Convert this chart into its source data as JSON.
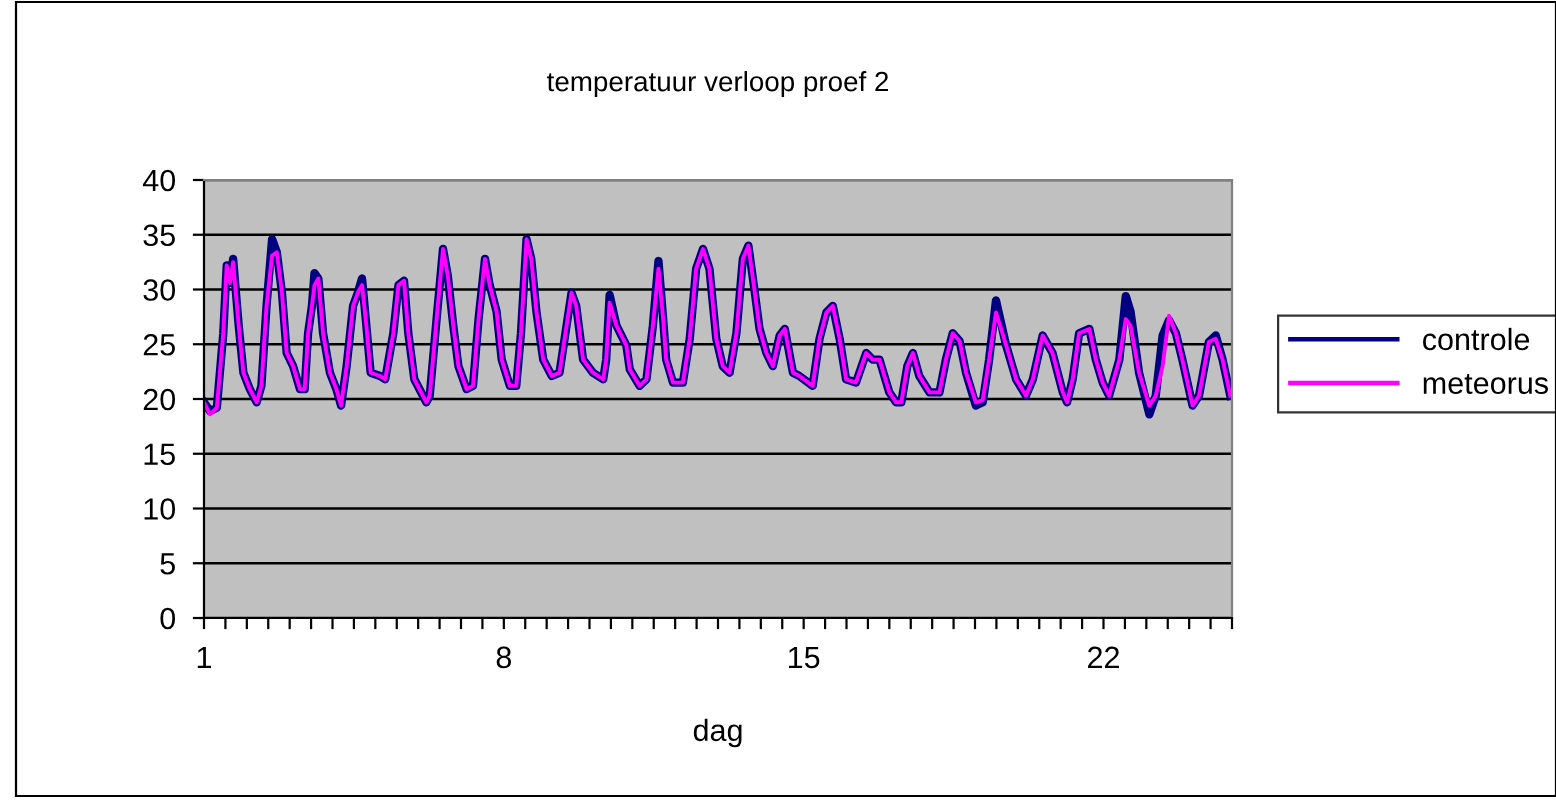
{
  "chart_data": {
    "type": "line",
    "title": "temperatuur verloop proef 2",
    "xlabel": "dag",
    "x": [
      1.0,
      1.14,
      1.3,
      1.45,
      1.53,
      1.61,
      1.68,
      1.81,
      1.92,
      2.07,
      2.23,
      2.34,
      2.46,
      2.59,
      2.7,
      2.82,
      2.93,
      3.08,
      3.24,
      3.35,
      3.43,
      3.52,
      3.58,
      3.67,
      3.78,
      3.94,
      4.09,
      4.2,
      4.33,
      4.48,
      4.59,
      4.69,
      4.79,
      4.89,
      5.11,
      5.23,
      5.42,
      5.54,
      5.67,
      5.77,
      5.91,
      6.19,
      6.27,
      6.43,
      6.58,
      6.69,
      6.82,
      6.94,
      7.13,
      7.28,
      7.41,
      7.56,
      7.67,
      7.83,
      7.95,
      8.14,
      8.29,
      8.4,
      8.53,
      8.64,
      8.76,
      8.92,
      9.12,
      9.3,
      9.43,
      9.58,
      9.69,
      9.85,
      10.08,
      10.32,
      10.39,
      10.47,
      10.63,
      10.86,
      10.94,
      11.17,
      11.33,
      11.48,
      11.61,
      11.72,
      11.79,
      11.95,
      12.18,
      12.34,
      12.49,
      12.65,
      12.8,
      12.96,
      13.11,
      13.27,
      13.43,
      13.58,
      13.71,
      13.86,
      13.97,
      14.13,
      14.28,
      14.44,
      14.56,
      14.75,
      14.9,
      15.21,
      15.37,
      15.53,
      15.68,
      15.84,
      15.99,
      16.22,
      16.46,
      16.61,
      16.77,
      17.0,
      17.16,
      17.28,
      17.42,
      17.55,
      17.7,
      17.94,
      18.17,
      18.32,
      18.48,
      18.64,
      18.79,
      19.02,
      19.18,
      19.33,
      19.49,
      19.72,
      19.96,
      20.19,
      20.35,
      20.58,
      20.81,
      21.05,
      21.15,
      21.28,
      21.43,
      21.67,
      21.82,
      21.98,
      22.13,
      22.37,
      22.52,
      22.63,
      22.83,
      23.07,
      23.22,
      23.38,
      23.53,
      23.69,
      23.84,
      24.08,
      24.23,
      24.46,
      24.62,
      24.78,
      24.96
    ],
    "series": [
      {
        "name": "controle",
        "color": "#000080",
        "values": [
          19.7,
          18.9,
          19.2,
          26,
          32.2,
          30.6,
          32.8,
          26.7,
          22.4,
          20.9,
          19.7,
          21.2,
          28.5,
          34.6,
          33.4,
          29.7,
          24.2,
          23,
          20.9,
          20.9,
          26,
          28.5,
          31.5,
          31,
          26,
          22.4,
          20.9,
          19.4,
          23,
          28.5,
          29.7,
          31,
          26.7,
          22.4,
          22.1,
          21.8,
          26,
          30.4,
          30.8,
          26,
          21.8,
          19.7,
          20.3,
          27.3,
          33.7,
          31.3,
          26.7,
          23,
          20.9,
          21.2,
          27.3,
          32.8,
          30.4,
          28,
          23.6,
          21.2,
          21.2,
          26,
          34.6,
          32.8,
          28,
          23.6,
          22.1,
          22.4,
          25.8,
          29.7,
          28.5,
          23.6,
          22.4,
          21.8,
          23.6,
          29.5,
          26.7,
          24.9,
          22.7,
          21.2,
          21.8,
          26.7,
          32.6,
          27.3,
          23.6,
          21.5,
          21.5,
          25.5,
          31.9,
          33.7,
          31.9,
          25.5,
          23,
          22.4,
          26,
          32.8,
          34,
          29.7,
          26.4,
          24.2,
          23,
          25.8,
          26.4,
          22.4,
          22.1,
          21.2,
          25.5,
          27.9,
          28.5,
          25.5,
          21.8,
          21.5,
          24.2,
          23.6,
          23.6,
          20.6,
          19.7,
          19.7,
          23,
          24.2,
          22.1,
          20.6,
          20.6,
          23.6,
          26,
          25.3,
          22.4,
          19.4,
          19.7,
          23.6,
          29.0,
          25,
          21.8,
          20.3,
          21.8,
          25.8,
          24.2,
          20.6,
          19.7,
          21.8,
          26,
          26.4,
          23.6,
          21.5,
          20.3,
          23.6,
          29.4,
          28,
          22.4,
          18.6,
          20.3,
          25.8,
          27.2,
          26,
          23.6,
          19.4,
          20.3,
          25.2,
          25.8,
          23.6,
          20.3
        ]
      },
      {
        "name": "meteorus",
        "color": "#ff00ff",
        "values": [
          19.7,
          18.6,
          19.2,
          26,
          32.2,
          30.6,
          32.5,
          26.7,
          22.4,
          20.9,
          19.7,
          21.2,
          28.5,
          33.1,
          33.4,
          29.7,
          24.2,
          23,
          20.9,
          20.9,
          26,
          28.5,
          30.4,
          31,
          26,
          22.4,
          20.9,
          19.4,
          23,
          28.5,
          29.7,
          30.4,
          26.7,
          22.4,
          22.1,
          21.8,
          26,
          30.4,
          30.8,
          26,
          21.8,
          19.7,
          20.3,
          27.3,
          33.7,
          31.3,
          26.7,
          23,
          20.9,
          21.2,
          27.3,
          32.8,
          30.4,
          28,
          23.6,
          21.2,
          21.2,
          26,
          34.6,
          32.8,
          28,
          23.6,
          22.1,
          22.4,
          25.8,
          29.7,
          28.5,
          23.6,
          22.4,
          21.8,
          23.6,
          28.8,
          26.7,
          24.9,
          22.7,
          21.2,
          21.8,
          26.7,
          31.9,
          27.3,
          23.6,
          21.5,
          21.5,
          25.5,
          31.9,
          33.7,
          31.9,
          25.5,
          23,
          22.4,
          26,
          32.8,
          34,
          29.7,
          26.4,
          24.2,
          23,
          25.8,
          26.4,
          22.4,
          22.1,
          21.2,
          25.5,
          27.9,
          28.5,
          25.5,
          21.8,
          21.5,
          24.2,
          23.6,
          23.6,
          20.6,
          19.7,
          19.7,
          23,
          24.2,
          22.1,
          20.6,
          20.6,
          23.6,
          26,
          25.3,
          22.4,
          19.7,
          19.9,
          23.6,
          27.9,
          25,
          21.8,
          20.3,
          21.8,
          25.8,
          24.2,
          20.6,
          19.7,
          21.8,
          26,
          26.4,
          23.6,
          21.5,
          20.3,
          23.6,
          27.3,
          26.7,
          22.4,
          19.4,
          20.3,
          23,
          27.6,
          26,
          23.6,
          19.4,
          20.3,
          25.2,
          25.5,
          23.6,
          20.3
        ]
      }
    ],
    "xlim": [
      1,
      25
    ],
    "xticks": [
      1,
      {
        "value": 1.5,
        "label": null
      },
      {
        "value": 2,
        "label": null
      },
      {
        "value": 2.5,
        "label": null
      },
      {
        "value": 3,
        "label": null
      },
      {
        "value": 3.5,
        "label": null
      },
      {
        "value": 4,
        "label": null
      },
      {
        "value": 4.5,
        "label": null
      },
      {
        "value": 5,
        "label": null
      },
      {
        "value": 5.5,
        "label": null
      },
      {
        "value": 6,
        "label": null
      },
      {
        "value": 6.5,
        "label": null
      },
      {
        "value": 7,
        "label": null
      },
      {
        "value": 7.5,
        "label": null
      },
      8,
      {
        "value": 8.5,
        "label": null
      },
      {
        "value": 9,
        "label": null
      },
      {
        "value": 9.5,
        "label": null
      },
      {
        "value": 10,
        "label": null
      },
      {
        "value": 10.5,
        "label": null
      },
      {
        "value": 11,
        "label": null
      },
      {
        "value": 11.5,
        "label": null
      },
      {
        "value": 12,
        "label": null
      },
      {
        "value": 12.5,
        "label": null
      },
      {
        "value": 13,
        "label": null
      },
      {
        "value": 13.5,
        "label": null
      },
      {
        "value": 14,
        "label": null
      },
      {
        "value": 14.5,
        "label": null
      },
      15,
      {
        "value": 15.5,
        "label": null
      },
      {
        "value": 16,
        "label": null
      },
      {
        "value": 16.5,
        "label": null
      },
      {
        "value": 17,
        "label": null
      },
      {
        "value": 17.5,
        "label": null
      },
      {
        "value": 18,
        "label": null
      },
      {
        "value": 18.5,
        "label": null
      },
      {
        "value": 19,
        "label": null
      },
      {
        "value": 19.5,
        "label": null
      },
      {
        "value": 20,
        "label": null
      },
      {
        "value": 20.5,
        "label": null
      },
      {
        "value": 21,
        "label": null
      },
      {
        "value": 21.5,
        "label": null
      },
      22,
      {
        "value": 22.5,
        "label": null
      },
      {
        "value": 23,
        "label": null
      },
      {
        "value": 23.5,
        "label": null
      },
      {
        "value": 24,
        "label": null
      },
      {
        "value": 24.5,
        "label": null
      },
      {
        "value": 25,
        "label": null
      }
    ],
    "ylim": [
      0,
      40
    ],
    "yticks": [
      0,
      5,
      10,
      15,
      20,
      25,
      30,
      35,
      40
    ],
    "grid": "y",
    "legend": "right",
    "marker": "none",
    "line_style": "solid"
  }
}
